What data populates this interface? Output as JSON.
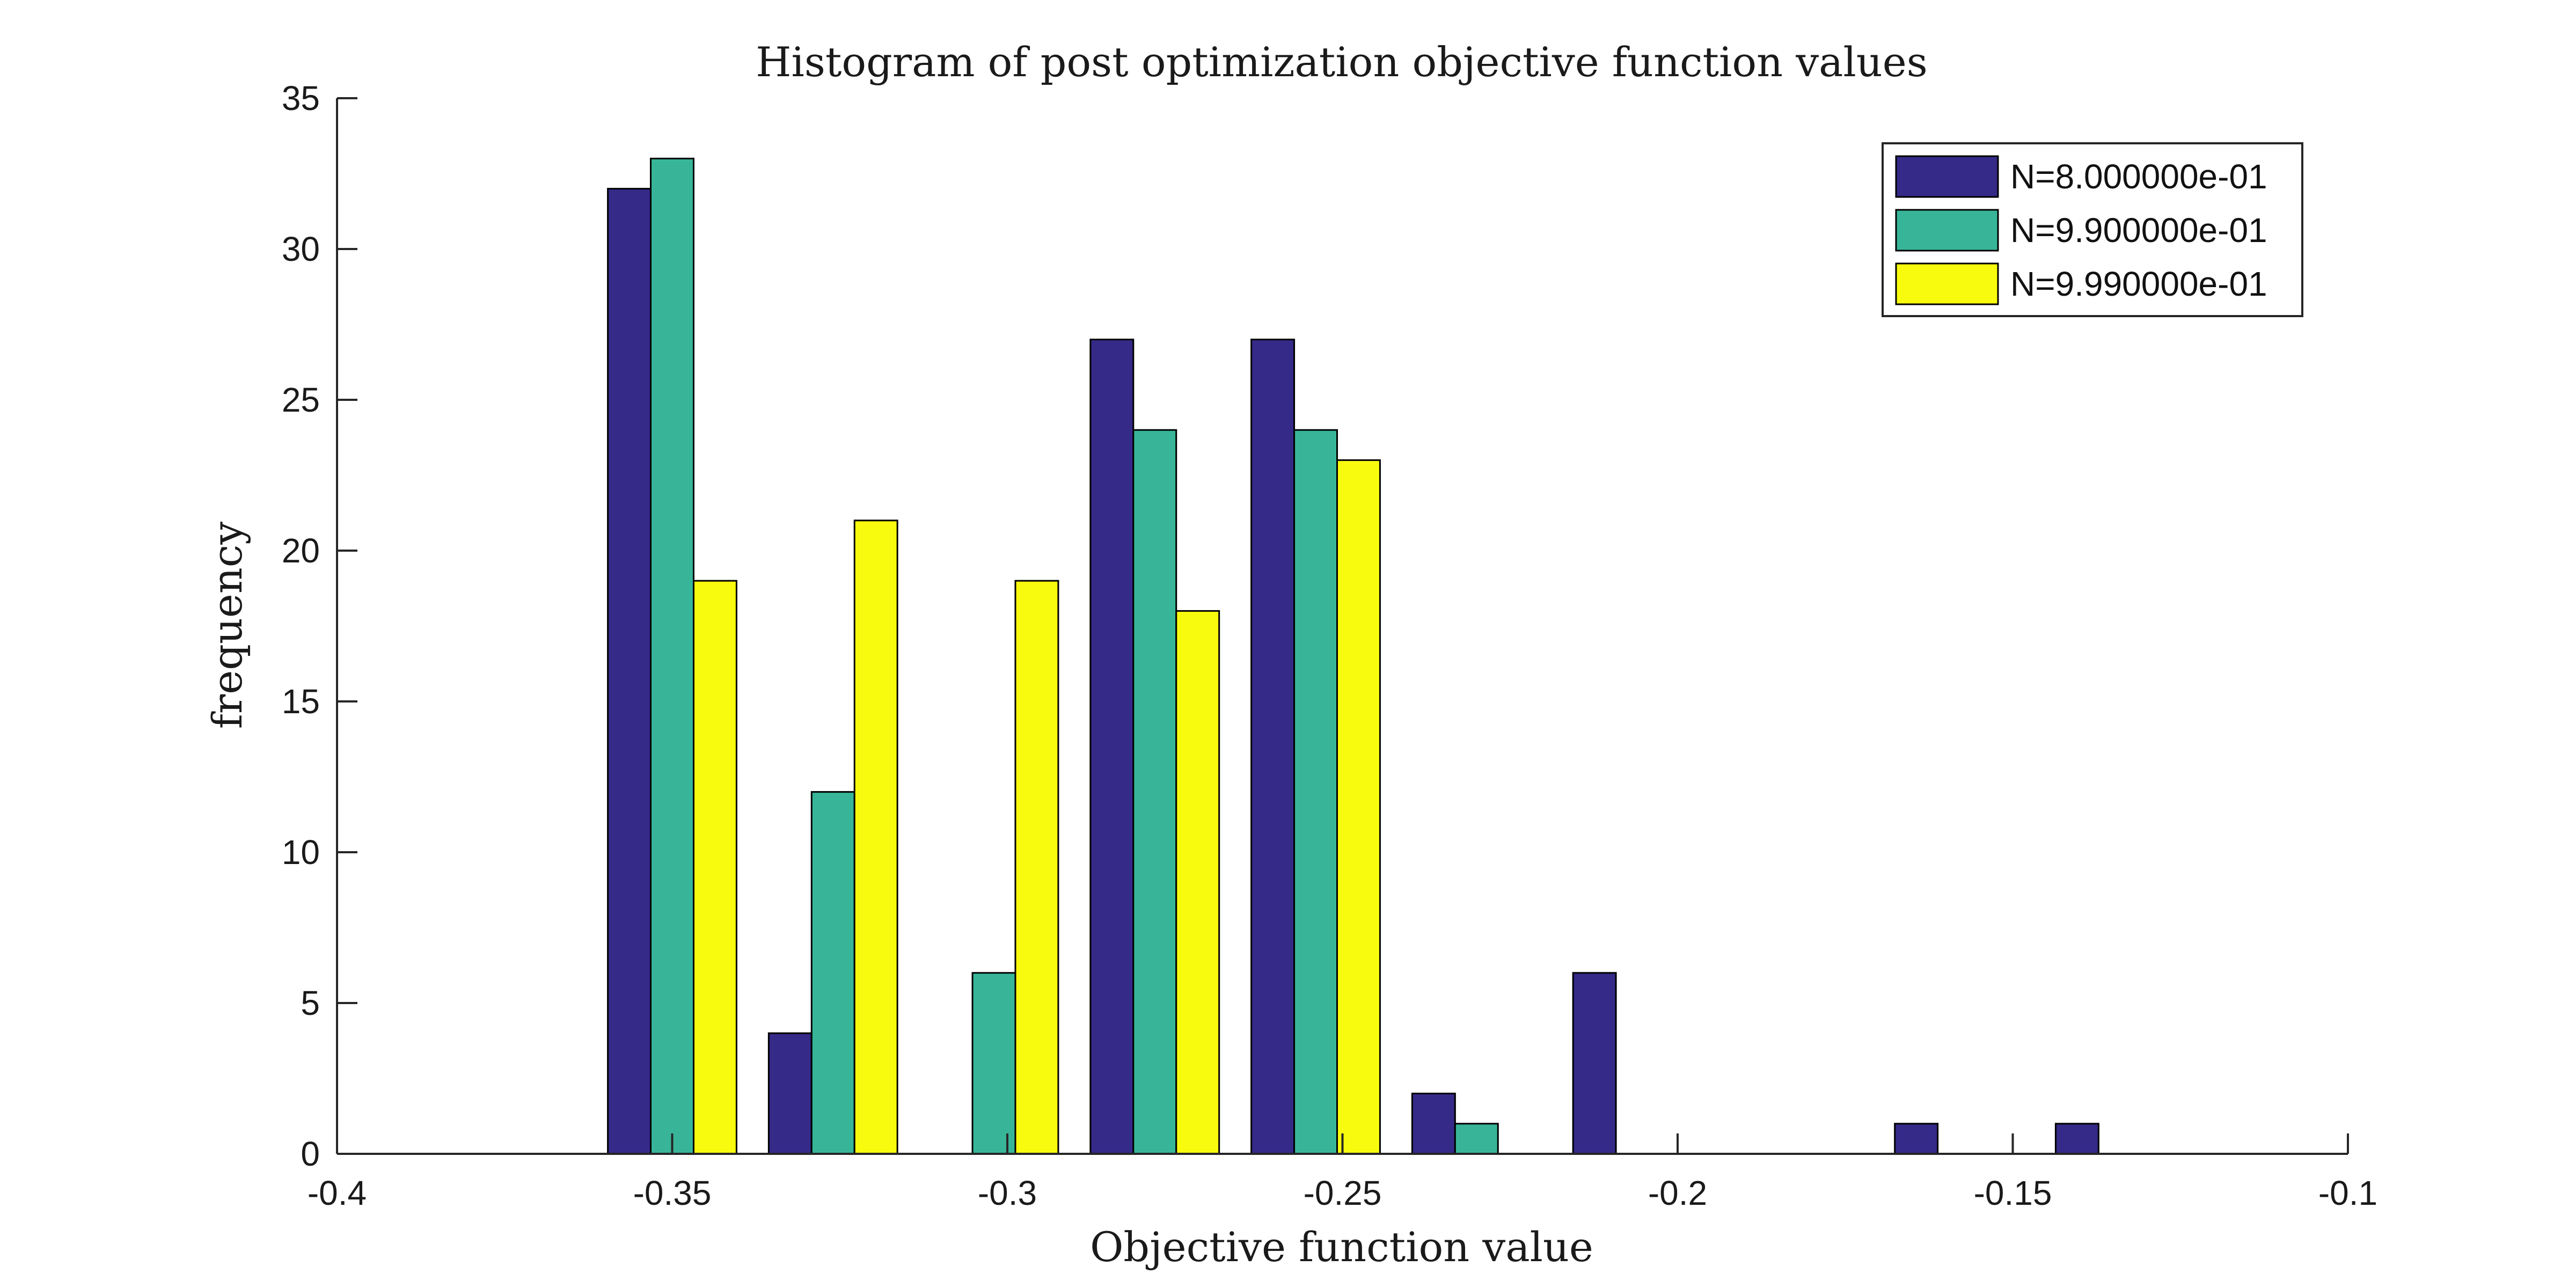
{
  "chart_data": {
    "type": "bar",
    "title": "Histogram of post optimization objective function values",
    "xlabel": "Objective function value",
    "ylabel": "frequency",
    "xlim": [
      -0.4,
      -0.1
    ],
    "ylim": [
      0,
      35
    ],
    "x_ticks": [
      "-0.4",
      "-0.35",
      "-0.3",
      "-0.25",
      "-0.2",
      "-0.15",
      "-0.1"
    ],
    "x_tick_values": [
      -0.4,
      -0.35,
      -0.3,
      -0.25,
      -0.2,
      -0.15,
      -0.1
    ],
    "y_ticks": [
      "0",
      "5",
      "10",
      "15",
      "20",
      "25",
      "30",
      "35"
    ],
    "y_tick_values": [
      0,
      5,
      10,
      15,
      20,
      25,
      30,
      35
    ],
    "bin_centers": [
      -0.35,
      -0.326,
      -0.302,
      -0.278,
      -0.254,
      -0.23,
      -0.206,
      -0.182,
      -0.158,
      -0.134
    ],
    "bin_width": 0.024,
    "grid": false,
    "legend_position": "top-right",
    "series": [
      {
        "name": "N=8.000000e-01",
        "color": "#352a87",
        "values": [
          32,
          4,
          0,
          27,
          27,
          2,
          6,
          0,
          1,
          1
        ]
      },
      {
        "name": "N=9.900000e-01",
        "color": "#38b599",
        "values": [
          33,
          12,
          6,
          24,
          24,
          1,
          0,
          0,
          0,
          0
        ]
      },
      {
        "name": "N=9.990000e-01",
        "color": "#f9fb0e",
        "values": [
          19,
          21,
          19,
          18,
          23,
          0,
          0,
          0,
          0,
          0
        ]
      }
    ]
  }
}
